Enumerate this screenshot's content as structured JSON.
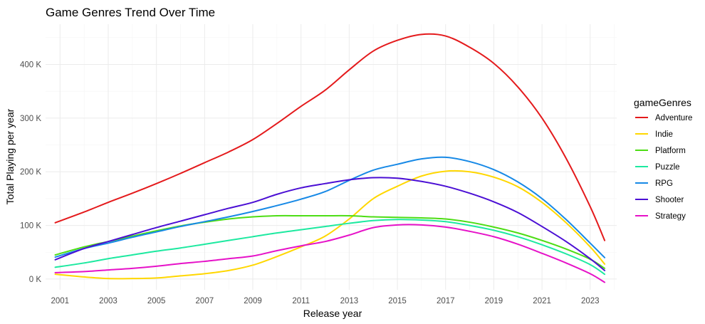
{
  "chart_data": {
    "type": "line",
    "title": "Game Genres Trend Over Time",
    "xlabel": "Release year",
    "ylabel": "Total Playing per year",
    "xlim": [
      2000.4,
      2024.1
    ],
    "ylim": [
      -20000,
      475000
    ],
    "x_ticks": [
      2001,
      2003,
      2005,
      2007,
      2009,
      2011,
      2013,
      2015,
      2017,
      2019,
      2021,
      2023
    ],
    "x_tick_labels": [
      "2001",
      "2003",
      "2005",
      "2007",
      "2009",
      "2011",
      "2013",
      "2015",
      "2017",
      "2019",
      "2021",
      "2023"
    ],
    "y_ticks": [
      0,
      100000,
      200000,
      300000,
      400000
    ],
    "y_tick_labels": [
      "0 K",
      "100 K",
      "200 K",
      "300 K",
      "400 K"
    ],
    "grid": true,
    "legend": {
      "title": "gameGenres",
      "position": "right"
    },
    "x": [
      2000.8,
      2002,
      2003,
      2004,
      2005,
      2006,
      2007,
      2008,
      2009,
      2010,
      2011,
      2012,
      2013,
      2014,
      2015,
      2016,
      2017,
      2018,
      2019,
      2020,
      2021,
      2022,
      2023,
      2023.6
    ],
    "series": [
      {
        "name": "Adventure",
        "color": "#e41a1c",
        "values": [
          105000,
          125000,
          143000,
          160000,
          178000,
          197000,
          217000,
          237000,
          260000,
          290000,
          322000,
          352000,
          390000,
          425000,
          445000,
          456000,
          453000,
          432000,
          402000,
          358000,
          300000,
          225000,
          135000,
          72000
        ]
      },
      {
        "name": "Indie",
        "color": "#ffd700",
        "values": [
          9000,
          4000,
          1000,
          1000,
          2000,
          6000,
          10000,
          16000,
          26000,
          42000,
          60000,
          80000,
          112000,
          150000,
          173000,
          192000,
          201000,
          200000,
          190000,
          172000,
          143000,
          105000,
          60000,
          28000
        ]
      },
      {
        "name": "Platform",
        "color": "#4ddd14",
        "values": [
          45000,
          60000,
          70000,
          80000,
          90000,
          99000,
          106000,
          112000,
          116000,
          118000,
          118000,
          118000,
          118000,
          116000,
          115000,
          114000,
          112000,
          106000,
          97000,
          86000,
          72000,
          56000,
          37000,
          20000
        ]
      },
      {
        "name": "Puzzle",
        "color": "#1de9a0",
        "values": [
          22000,
          30000,
          38000,
          45000,
          52000,
          58000,
          65000,
          72000,
          79000,
          86000,
          92000,
          98000,
          104000,
          109000,
          111000,
          110000,
          107000,
          100000,
          91000,
          79000,
          64000,
          47000,
          27000,
          9000
        ]
      },
      {
        "name": "RPG",
        "color": "#1789e6",
        "values": [
          41000,
          57000,
          67000,
          78000,
          88000,
          98000,
          107000,
          116000,
          126000,
          137000,
          149000,
          163000,
          184000,
          203000,
          214000,
          224000,
          227000,
          219000,
          204000,
          181000,
          150000,
          111000,
          67000,
          40000
        ]
      },
      {
        "name": "Shooter",
        "color": "#4b0fd4",
        "values": [
          36000,
          57000,
          70000,
          83000,
          96000,
          108000,
          120000,
          132000,
          143000,
          158000,
          170000,
          178000,
          185000,
          189000,
          188000,
          182000,
          173000,
          160000,
          144000,
          124000,
          98000,
          70000,
          38000,
          16000
        ]
      },
      {
        "name": "Strategy",
        "color": "#e612c8",
        "values": [
          12000,
          14000,
          17000,
          20000,
          24000,
          29000,
          33000,
          38000,
          43000,
          53000,
          62000,
          70000,
          82000,
          96000,
          101000,
          101000,
          97000,
          89000,
          79000,
          65000,
          48000,
          30000,
          10000,
          -6000
        ]
      }
    ]
  }
}
